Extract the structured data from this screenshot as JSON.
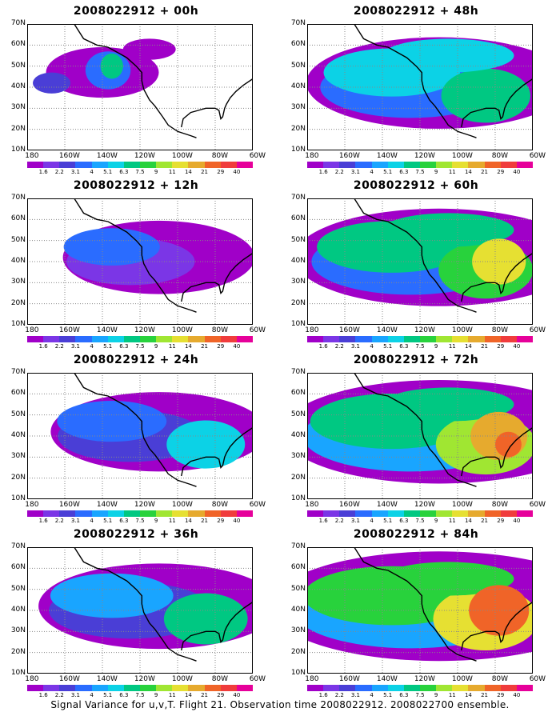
{
  "colorbar": {
    "labels": [
      "1.6",
      "2.2",
      "3.1",
      "4",
      "5.1",
      "6.3",
      "7.5",
      "9",
      "11",
      "14",
      "21",
      "29",
      "40"
    ],
    "colors": [
      "#a000c8",
      "#7b36e6",
      "#4a3ed6",
      "#2a6cff",
      "#19a5ff",
      "#0cd2e6",
      "#00c882",
      "#28d23c",
      "#a0e632",
      "#e6e032",
      "#e6aa2e",
      "#f06428",
      "#f03c3c",
      "#e6009a"
    ]
  },
  "axes": {
    "x_ticks": [
      "180",
      "160W",
      "140W",
      "120W",
      "100W",
      "80W",
      "60W"
    ],
    "y_ticks": [
      "70N",
      "60N",
      "50N",
      "40N",
      "30N",
      "20N",
      "10N"
    ]
  },
  "panels": [
    {
      "title": "2008022912 + 00h"
    },
    {
      "title": "2008022912 + 48h"
    },
    {
      "title": "2008022912 + 12h"
    },
    {
      "title": "2008022912 + 60h"
    },
    {
      "title": "2008022912 + 24h"
    },
    {
      "title": "2008022912 + 72h"
    },
    {
      "title": "2008022912 + 36h"
    },
    {
      "title": "2008022912 + 84h"
    }
  ],
  "caption": "Signal Variance for u,v,T. Flight 21. Observation time 2008022912. 2008022700 ensemble.",
  "chart_data": {
    "type": "heatmap",
    "variable": "Signal Variance for u,v,T",
    "flight": "Flight 21",
    "observation_time": "2008022912",
    "ensemble": "2008022700",
    "lead_times_h": [
      0,
      12,
      24,
      36,
      48,
      60,
      72,
      84
    ],
    "lon_range": [
      "180",
      "60W"
    ],
    "lat_range": [
      "10N",
      "70N"
    ],
    "color_levels": [
      1.6,
      2.2,
      3.1,
      4,
      5.1,
      6.3,
      7.5,
      9,
      11,
      14,
      21,
      29,
      40
    ]
  }
}
